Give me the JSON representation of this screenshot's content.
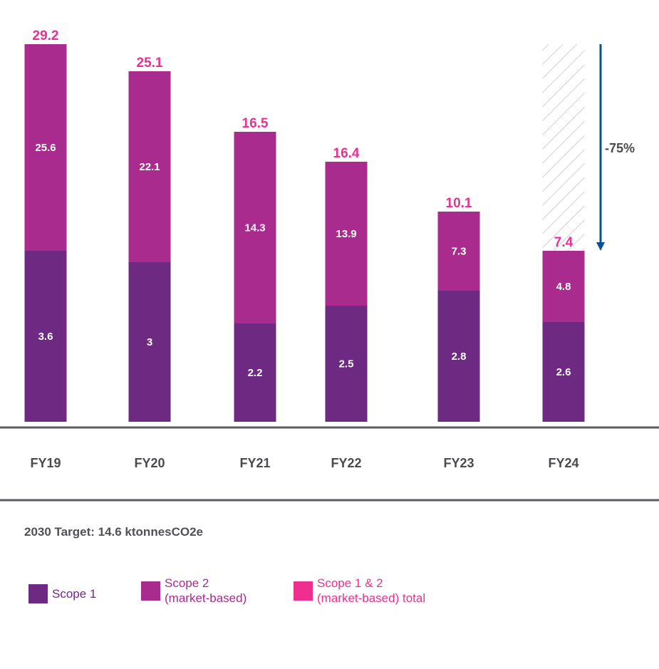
{
  "chart_data": {
    "type": "bar",
    "stacked": true,
    "title": "",
    "xlabel": "",
    "ylabel": "",
    "unit": "ktonnesCO2e",
    "categories": [
      "FY19",
      "FY20",
      "FY21",
      "FY22",
      "FY23",
      "FY24"
    ],
    "series": [
      {
        "name": "Scope 1",
        "color": "#6e2a82",
        "values": [
          3.6,
          3,
          2.2,
          2.5,
          2.8,
          2.6
        ]
      },
      {
        "name": "Scope 2 (market-based)",
        "color": "#a92b8d",
        "values": [
          25.6,
          22.1,
          14.3,
          13.9,
          7.3,
          4.8
        ]
      }
    ],
    "totals": {
      "name": "Scope 1 & 2 (market-based) total",
      "color": "#ee2f8f",
      "values": [
        29.2,
        25.1,
        16.5,
        16.4,
        10.1,
        7.4
      ]
    },
    "segment_labels": {
      "scope1": [
        "3.6",
        "3",
        "2.2",
        "2.5",
        "2.8",
        "2.6"
      ],
      "scope2": [
        "25.6",
        "22.1",
        "14.3",
        "13.9",
        "7.3",
        "4.8"
      ],
      "totals": [
        "29.2",
        "25.1",
        "16.5",
        "16.4",
        "10.1",
        "7.4"
      ]
    },
    "annotations": [
      {
        "type": "reduction-arrow",
        "from_category": "FY19",
        "to_category": "FY24",
        "label": "-75%",
        "color": "#0d4f95"
      },
      {
        "type": "hatched-gap",
        "category": "FY24",
        "from_value": 7.4,
        "to_value": 29.2
      }
    ],
    "legend": {
      "position": "bottom-left"
    },
    "grid": false
  },
  "target": {
    "text": "2030 Target: 14.6 ktonnesCO2e",
    "value": 14.6,
    "year": 2030
  },
  "legend": [
    {
      "label": "Scope 1",
      "color": "#6e2a82",
      "text_color": "#6e2a82"
    },
    {
      "label": "Scope 2\n(market-based)",
      "color": "#a92b8d",
      "text_color": "#a92b8d"
    },
    {
      "label": "Scope 1 & 2\n(market-based) total",
      "color": "#ee2f8f",
      "text_color": "#ee2f8f"
    }
  ],
  "colors": {
    "axis": "#5b5b60",
    "category_text": "#4a4a4f",
    "hatch": "#bdbdbd"
  }
}
